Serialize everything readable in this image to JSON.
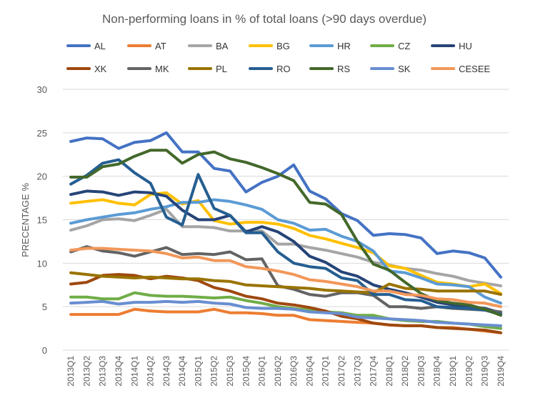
{
  "chart_data": {
    "type": "line",
    "title": "Non-performing loans in % of total loans (>90 days overdue)",
    "ylabel": "PRECENTAGE %",
    "xlabel": "",
    "ylim": [
      0,
      30
    ],
    "yticks": [
      0,
      5,
      10,
      15,
      20,
      25,
      30
    ],
    "grid": true,
    "legend_position": "top",
    "x": [
      "2013Q1",
      "2013Q2",
      "2013Q3",
      "2013Q4",
      "2014Q1",
      "2014Q2",
      "2014Q3",
      "2014Q4",
      "2015Q1",
      "2015Q2",
      "2015Q3",
      "2015Q4",
      "2016Q1",
      "2016Q2",
      "2016Q3",
      "2016Q4",
      "2017Q1",
      "2017Q2",
      "2017Q3",
      "2017Q4",
      "2018Q1",
      "2018Q2",
      "2018Q3",
      "2018Q4",
      "2019Q1",
      "2019Q2",
      "2019Q3",
      "2019Q4"
    ],
    "series": [
      {
        "name": "AL",
        "color": "#4472C4",
        "values": [
          24.0,
          24.4,
          24.3,
          23.2,
          23.9,
          24.1,
          25.0,
          22.8,
          22.8,
          20.9,
          20.6,
          18.2,
          19.3,
          20.0,
          21.3,
          18.3,
          17.4,
          15.7,
          14.9,
          13.2,
          13.4,
          13.3,
          12.9,
          11.1,
          11.4,
          11.2,
          10.6,
          8.4
        ]
      },
      {
        "name": "AT",
        "color": "#ED7D31",
        "values": [
          4.1,
          4.1,
          4.1,
          4.1,
          4.7,
          4.5,
          4.4,
          4.4,
          4.4,
          4.7,
          4.3,
          4.3,
          4.2,
          4.0,
          4.0,
          3.5,
          3.4,
          3.3,
          3.2,
          3.1,
          2.9,
          2.8,
          2.8,
          2.6,
          2.6,
          2.4,
          2.2,
          2.0
        ]
      },
      {
        "name": "BA",
        "color": "#A5A5A5",
        "values": [
          13.8,
          14.3,
          15.0,
          15.1,
          14.9,
          15.5,
          16.2,
          14.2,
          14.2,
          14.1,
          13.7,
          13.7,
          13.7,
          12.2,
          12.2,
          11.8,
          11.5,
          11.1,
          10.7,
          10.1,
          9.8,
          9.4,
          9.2,
          8.8,
          8.5,
          8.0,
          7.7,
          7.4
        ]
      },
      {
        "name": "BG",
        "color": "#FFC000",
        "values": [
          16.9,
          17.1,
          17.3,
          16.9,
          16.7,
          17.9,
          18.1,
          16.8,
          17.2,
          14.9,
          14.5,
          14.7,
          14.7,
          14.5,
          14.0,
          13.2,
          12.8,
          12.3,
          11.8,
          11.2,
          9.7,
          9.4,
          8.6,
          7.8,
          7.6,
          7.3,
          7.6,
          6.5
        ]
      },
      {
        "name": "HR",
        "color": "#5B9BD5",
        "values": [
          14.6,
          15.0,
          15.3,
          15.6,
          15.8,
          16.2,
          16.5,
          17.0,
          17.0,
          17.3,
          17.1,
          16.7,
          16.2,
          15.0,
          14.6,
          13.8,
          13.9,
          13.1,
          12.5,
          11.4,
          9.1,
          8.9,
          8.3,
          7.6,
          7.5,
          7.3,
          6.1,
          5.4
        ]
      },
      {
        "name": "CZ",
        "color": "#70AD47",
        "values": [
          6.1,
          6.1,
          5.9,
          5.9,
          6.6,
          6.3,
          6.2,
          6.2,
          6.1,
          6.0,
          6.1,
          5.7,
          5.4,
          5.0,
          4.8,
          4.6,
          4.4,
          4.3,
          4.0,
          4.0,
          3.6,
          3.4,
          3.3,
          3.3,
          3.1,
          3.0,
          2.7,
          2.5
        ]
      },
      {
        "name": "HU",
        "color": "#264478",
        "values": [
          17.9,
          18.3,
          18.2,
          17.8,
          18.2,
          18.1,
          17.7,
          16.1,
          15.0,
          15.0,
          15.5,
          13.6,
          14.2,
          13.6,
          12.5,
          10.8,
          10.1,
          9.0,
          8.5,
          7.5,
          7.0,
          6.6,
          6.1,
          5.5,
          5.2,
          5.0,
          4.8,
          4.3
        ]
      },
      {
        "name": "XK",
        "color": "#9E480E",
        "values": [
          7.6,
          7.8,
          8.6,
          8.7,
          8.6,
          8.2,
          8.5,
          8.3,
          8.0,
          7.2,
          6.8,
          6.2,
          5.9,
          5.4,
          5.2,
          4.9,
          4.5,
          3.9,
          3.6,
          3.1,
          2.9,
          2.8,
          2.8,
          2.6,
          2.5,
          2.4,
          2.3,
          2.0
        ]
      },
      {
        "name": "MK",
        "color": "#636363",
        "values": [
          11.3,
          11.9,
          11.4,
          11.2,
          10.8,
          11.3,
          11.8,
          11.0,
          11.1,
          11.0,
          11.3,
          10.4,
          10.5,
          7.4,
          7.0,
          6.4,
          6.2,
          6.6,
          6.6,
          6.3,
          5.0,
          5.0,
          4.8,
          5.0,
          4.8,
          4.7,
          4.6,
          4.4
        ]
      },
      {
        "name": "PL",
        "color": "#997300",
        "values": [
          8.9,
          8.7,
          8.5,
          8.4,
          8.3,
          8.4,
          8.3,
          8.2,
          8.2,
          8.0,
          7.9,
          7.5,
          7.4,
          7.3,
          7.2,
          7.1,
          6.9,
          6.8,
          6.7,
          6.6,
          7.6,
          7.1,
          7.0,
          6.8,
          6.8,
          6.8,
          6.8,
          6.4
        ]
      },
      {
        "name": "RO",
        "color": "#255E91",
        "values": [
          19.1,
          20.1,
          21.5,
          21.9,
          20.4,
          19.2,
          15.3,
          14.4,
          20.2,
          16.3,
          15.5,
          13.5,
          13.5,
          11.3,
          10.0,
          9.6,
          9.4,
          8.3,
          8.0,
          6.4,
          6.4,
          5.8,
          5.7,
          5.0,
          4.9,
          4.8,
          4.6,
          4.1
        ]
      },
      {
        "name": "RS",
        "color": "#43682B",
        "values": [
          19.9,
          19.9,
          21.1,
          21.4,
          22.3,
          23.0,
          23.0,
          21.5,
          22.5,
          22.8,
          22.0,
          21.6,
          21.0,
          20.3,
          19.5,
          17.0,
          16.8,
          15.6,
          12.5,
          9.9,
          9.2,
          7.8,
          6.5,
          5.7,
          5.4,
          5.2,
          4.7,
          4.0
        ]
      },
      {
        "name": "SK",
        "color": "#698ED0",
        "values": [
          5.4,
          5.5,
          5.6,
          5.3,
          5.5,
          5.5,
          5.6,
          5.5,
          5.6,
          5.4,
          5.3,
          4.9,
          4.8,
          4.8,
          4.7,
          4.4,
          4.3,
          4.2,
          3.8,
          3.7,
          3.6,
          3.5,
          3.4,
          3.2,
          3.1,
          3.0,
          2.9,
          2.8
        ]
      },
      {
        "name": "CESEE",
        "color": "#F1975A",
        "values": [
          11.5,
          11.7,
          11.7,
          11.6,
          11.5,
          11.4,
          11.1,
          10.6,
          10.7,
          10.3,
          10.3,
          9.6,
          9.4,
          9.1,
          8.7,
          8.1,
          7.9,
          7.6,
          7.3,
          6.8,
          6.8,
          6.4,
          6.3,
          5.9,
          5.8,
          5.5,
          5.4,
          5.0
        ]
      }
    ]
  }
}
